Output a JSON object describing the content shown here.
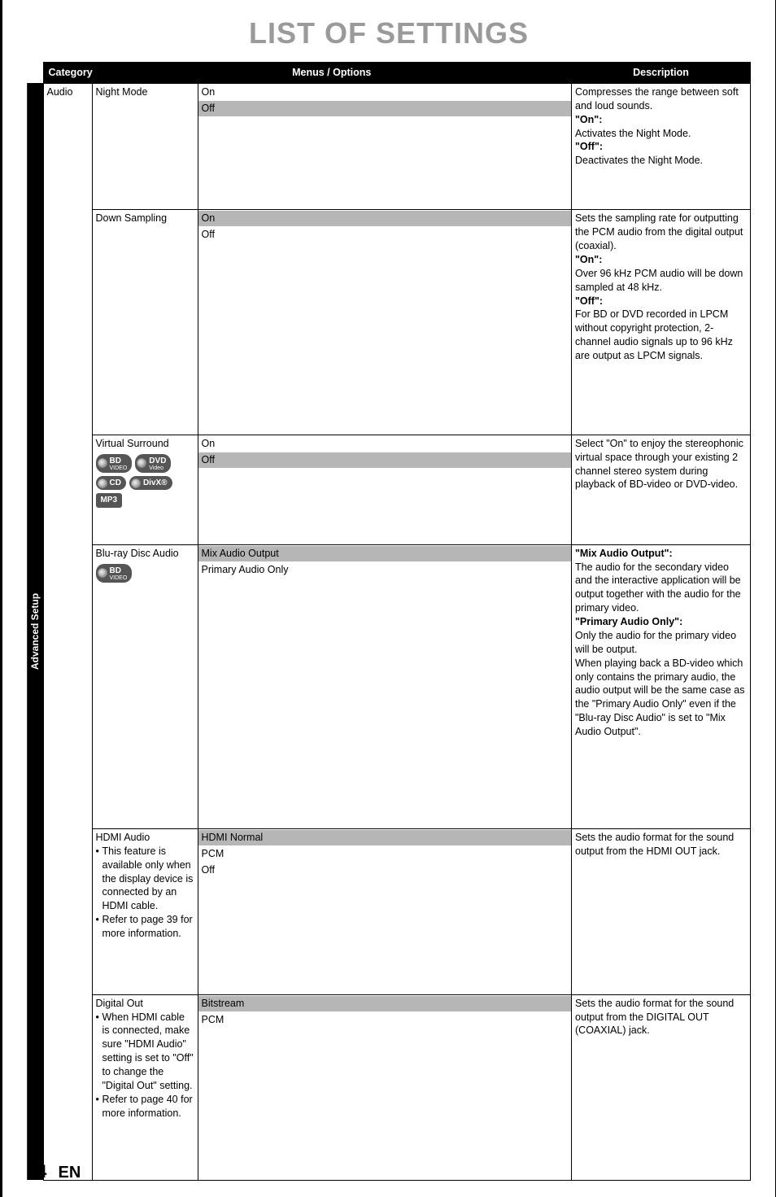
{
  "page": {
    "title": "LIST OF SETTINGS",
    "number": "34",
    "lang": "EN"
  },
  "sidebar_label": "Advanced Setup",
  "headers": {
    "category": "Category",
    "menus": "Menus / Options",
    "description": "Description"
  },
  "category": "Audio",
  "rows": [
    {
      "menu": "Night Mode",
      "options": [
        {
          "label": "On",
          "selected": false
        },
        {
          "label": "Off",
          "selected": true
        }
      ],
      "description_lines": [
        "Compresses the range between soft and loud sounds.",
        "<b>\"On\":</b>",
        "Activates the Night Mode.",
        "<b>\"Off\":</b>",
        "Deactivates the Night Mode."
      ]
    },
    {
      "menu": "Down Sampling",
      "options": [
        {
          "label": "On",
          "selected": true
        },
        {
          "label": "Off",
          "selected": false
        }
      ],
      "description_lines": [
        "Sets the sampling rate for outputting the PCM audio from the digital output (coaxial).",
        "<b>\"On\":</b>",
        "Over 96 kHz PCM audio will be down sampled at 48 kHz.",
        "<b>\"Off\":</b>",
        "For BD or DVD recorded in LPCM without copyright protection, 2-channel audio signals up to 96 kHz are output as LPCM signals."
      ]
    },
    {
      "menu": "Virtual Surround",
      "badges_row1": [
        "BD|VIDEO",
        "DVD|Video"
      ],
      "badges_row2": [
        "CD|",
        "DivX®|"
      ],
      "badges_row3": [
        "MP3"
      ],
      "options": [
        {
          "label": "On",
          "selected": false
        },
        {
          "label": "Off",
          "selected": true
        }
      ],
      "description_lines": [
        "Select \"On\" to enjoy the stereophonic virtual space through your existing 2 channel stereo system during playback of BD-video or DVD-video."
      ]
    },
    {
      "menu": "Blu-ray Disc Audio",
      "badges_row1": [
        "BD|VIDEO"
      ],
      "options": [
        {
          "label": "Mix Audio Output",
          "selected": true
        },
        {
          "label": "Primary Audio Only",
          "selected": false
        }
      ],
      "description_lines": [
        "<b>\"Mix Audio Output\":</b>",
        "The audio for the secondary video and the interactive application will be output together with the audio for the primary video.",
        "<b>\"Primary Audio Only\":</b>",
        "Only the audio for the primary video will be output.",
        "When playing back a BD-video which only contains the primary audio, the audio output will be the same case as the \"Primary Audio Only\" even if the \"Blu-ray Disc Audio\" is set to \"Mix Audio Output\"."
      ]
    },
    {
      "menu": "HDMI Audio",
      "notes": [
        "This feature is available only when the display device is connected by an HDMI cable.",
        "Refer to page 39 for more information."
      ],
      "options": [
        {
          "label": "HDMI Normal",
          "selected": true
        },
        {
          "label": "PCM",
          "selected": false
        },
        {
          "label": "Off",
          "selected": false
        }
      ],
      "description_lines": [
        "Sets the audio format for the sound output from the HDMI OUT jack."
      ]
    },
    {
      "menu": "Digital Out",
      "notes": [
        "When HDMI cable is connected, make sure \"HDMI Audio\" setting is set to \"Off\" to change the \"Digital Out\" setting.",
        "Refer to page 40 for more information."
      ],
      "options": [
        {
          "label": "Bitstream",
          "selected": true
        },
        {
          "label": "PCM",
          "selected": false
        }
      ],
      "description_lines": [
        "Sets the audio format for the sound output from the DIGITAL OUT (COAXIAL) jack."
      ]
    }
  ]
}
